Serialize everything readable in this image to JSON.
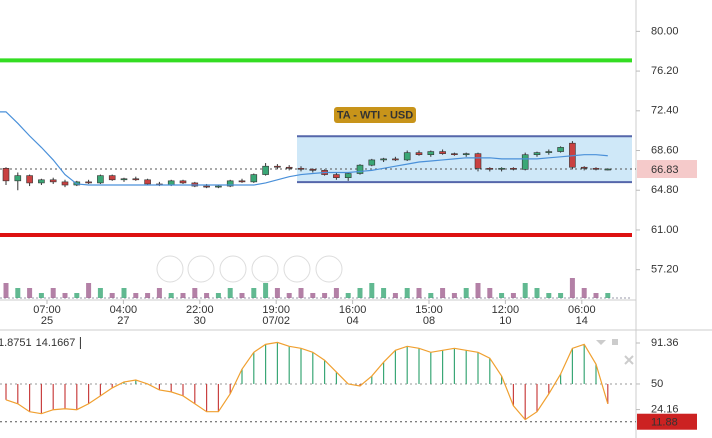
{
  "chart_data": [
    {
      "type": "candlestick",
      "label": "TA - WTI - USD",
      "ylim": [
        54.3,
        83.0
      ],
      "yticks": [
        {
          "value": 80,
          "label": "80.00"
        },
        {
          "value": 76.2,
          "label": "76.20"
        },
        {
          "value": 72.4,
          "label": "72.40"
        },
        {
          "value": 68.6,
          "label": "68.60"
        },
        {
          "value": 64.8,
          "label": "64.80"
        },
        {
          "value": 61,
          "label": "61.00"
        },
        {
          "value": 57.2,
          "label": "57.20"
        }
      ],
      "x_labels": [
        [
          "07:00",
          "25"
        ],
        [
          "04:00",
          "27"
        ],
        [
          "22:00",
          "30"
        ],
        [
          "19:00",
          "07/02"
        ],
        [
          "16:00",
          "04"
        ],
        [
          "15:00",
          "08"
        ],
        [
          "12:00",
          "10"
        ],
        [
          "06:00",
          "14"
        ]
      ],
      "up_color": "#3aa776",
      "down_color": "#c94141",
      "ohlc": [
        [
          66.9,
          67.0,
          65.3,
          65.7
        ],
        [
          65.7,
          66.5,
          64.8,
          66.2
        ],
        [
          66.2,
          66.3,
          65.2,
          65.5
        ],
        [
          65.5,
          65.9,
          65.3,
          65.8
        ],
        [
          65.8,
          66.0,
          65.4,
          65.6
        ],
        [
          65.6,
          65.8,
          65.1,
          65.3
        ],
        [
          65.3,
          65.7,
          65.2,
          65.6
        ],
        [
          65.6,
          65.8,
          65.4,
          65.5
        ],
        [
          65.5,
          66.3,
          65.4,
          66.2
        ],
        [
          66.2,
          66.3,
          65.7,
          65.8
        ],
        [
          65.8,
          66.0,
          65.6,
          65.9
        ],
        [
          65.9,
          66.1,
          65.7,
          65.8
        ],
        [
          65.8,
          65.9,
          65.3,
          65.4
        ],
        [
          65.4,
          65.6,
          65.2,
          65.3
        ],
        [
          65.3,
          65.8,
          65.2,
          65.7
        ],
        [
          65.7,
          65.8,
          65.4,
          65.5
        ],
        [
          65.5,
          65.6,
          65.1,
          65.2
        ],
        [
          65.2,
          65.4,
          65.0,
          65.1
        ],
        [
          65.1,
          65.3,
          65.0,
          65.2
        ],
        [
          65.2,
          65.8,
          65.1,
          65.7
        ],
        [
          65.7,
          65.9,
          65.5,
          65.6
        ],
        [
          65.6,
          66.4,
          65.5,
          66.3
        ],
        [
          66.3,
          67.4,
          66.2,
          67.1
        ],
        [
          67.1,
          67.3,
          66.8,
          67.0
        ],
        [
          67.0,
          67.2,
          66.7,
          66.9
        ],
        [
          66.9,
          67.1,
          66.6,
          66.8
        ],
        [
          66.8,
          66.9,
          66.5,
          66.7
        ],
        [
          66.7,
          66.8,
          66.2,
          66.3
        ],
        [
          66.3,
          66.5,
          65.8,
          66.0
        ],
        [
          66.0,
          66.5,
          65.7,
          66.4
        ],
        [
          66.4,
          67.3,
          66.3,
          67.2
        ],
        [
          67.2,
          67.8,
          67.1,
          67.7
        ],
        [
          67.7,
          67.9,
          67.5,
          67.8
        ],
        [
          67.8,
          68.0,
          67.6,
          67.7
        ],
        [
          67.7,
          68.6,
          67.6,
          68.4
        ],
        [
          68.4,
          68.6,
          68.1,
          68.2
        ],
        [
          68.2,
          68.6,
          68.0,
          68.5
        ],
        [
          68.5,
          68.7,
          68.2,
          68.3
        ],
        [
          68.3,
          68.4,
          68.1,
          68.2
        ],
        [
          68.2,
          68.4,
          68.0,
          68.3
        ],
        [
          68.3,
          68.4,
          66.6,
          66.9
        ],
        [
          66.9,
          67.0,
          66.6,
          66.8
        ],
        [
          66.8,
          67.0,
          66.6,
          66.9
        ],
        [
          66.9,
          67.0,
          66.7,
          66.8
        ],
        [
          66.8,
          68.4,
          66.7,
          68.2
        ],
        [
          68.2,
          68.5,
          68.0,
          68.4
        ],
        [
          68.4,
          68.7,
          68.2,
          68.5
        ],
        [
          68.5,
          69.0,
          68.4,
          68.9
        ],
        [
          69.3,
          69.5,
          66.8,
          67.0
        ],
        [
          67.0,
          67.1,
          66.7,
          66.9
        ],
        [
          66.9,
          67.0,
          66.7,
          66.8
        ],
        [
          66.8,
          66.9,
          66.7,
          66.83
        ]
      ],
      "ma": {
        "color": "#4a90d9",
        "values": [
          72.3,
          71.2,
          70.0,
          68.9,
          67.7,
          66.3,
          65.4,
          65.3,
          65.3,
          65.3,
          65.3,
          65.3,
          65.3,
          65.3,
          65.3,
          65.3,
          65.3,
          65.3,
          65.3,
          65.3,
          65.3,
          65.3,
          65.5,
          65.8,
          66.1,
          66.3,
          66.4,
          66.5,
          66.5,
          66.5,
          66.6,
          66.7,
          66.9,
          67.1,
          67.3,
          67.5,
          67.6,
          67.7,
          67.8,
          67.9,
          67.9,
          67.9,
          67.8,
          67.8,
          67.8,
          67.8,
          67.9,
          68.0,
          68.1,
          68.2,
          68.2,
          68.1
        ]
      },
      "volume": {
        "ylim": [
          0,
          12
        ],
        "values": [
          3,
          2,
          2,
          1,
          2,
          1,
          1,
          3,
          2,
          1,
          2,
          1,
          1,
          2,
          1,
          1,
          2,
          1,
          1,
          2,
          1,
          2,
          3,
          2,
          1,
          2,
          1,
          1,
          2,
          1,
          2,
          3,
          2,
          1,
          2,
          2,
          1,
          2,
          1,
          2,
          3,
          2,
          1,
          1,
          3,
          2,
          1,
          1,
          4,
          2,
          1,
          1
        ]
      },
      "resistance": {
        "value": 77.23,
        "color": "#33dd22"
      },
      "support": {
        "value": 60.52,
        "color": "#dd1111"
      },
      "channel": {
        "top": 69.97,
        "bottom": 65.58,
        "start": 25,
        "color": "#5566aa"
      },
      "last": 66.83
    },
    {
      "type": "oscillator",
      "readouts": [
        {
          "text": "1.8751",
          "color": "#c0392b"
        },
        {
          "text": "14.1667",
          "color": "#e8a040"
        }
      ],
      "ylim": [
        1.5,
        104.5
      ],
      "yticks": [
        91.36,
        50,
        24.16
      ],
      "mid": 50,
      "line_color": "#f0a030",
      "values": [
        34,
        30,
        22,
        20,
        24,
        25,
        24,
        30,
        38,
        46,
        52,
        54,
        50,
        44,
        42,
        38,
        30,
        22,
        22,
        40,
        65,
        82,
        90,
        92,
        88,
        86,
        82,
        74,
        62,
        50,
        48,
        58,
        72,
        84,
        88,
        86,
        82,
        84,
        86,
        84,
        82,
        76,
        58,
        28,
        14,
        22,
        40,
        60,
        86,
        90,
        70,
        30
      ],
      "last": 11.88
    }
  ]
}
